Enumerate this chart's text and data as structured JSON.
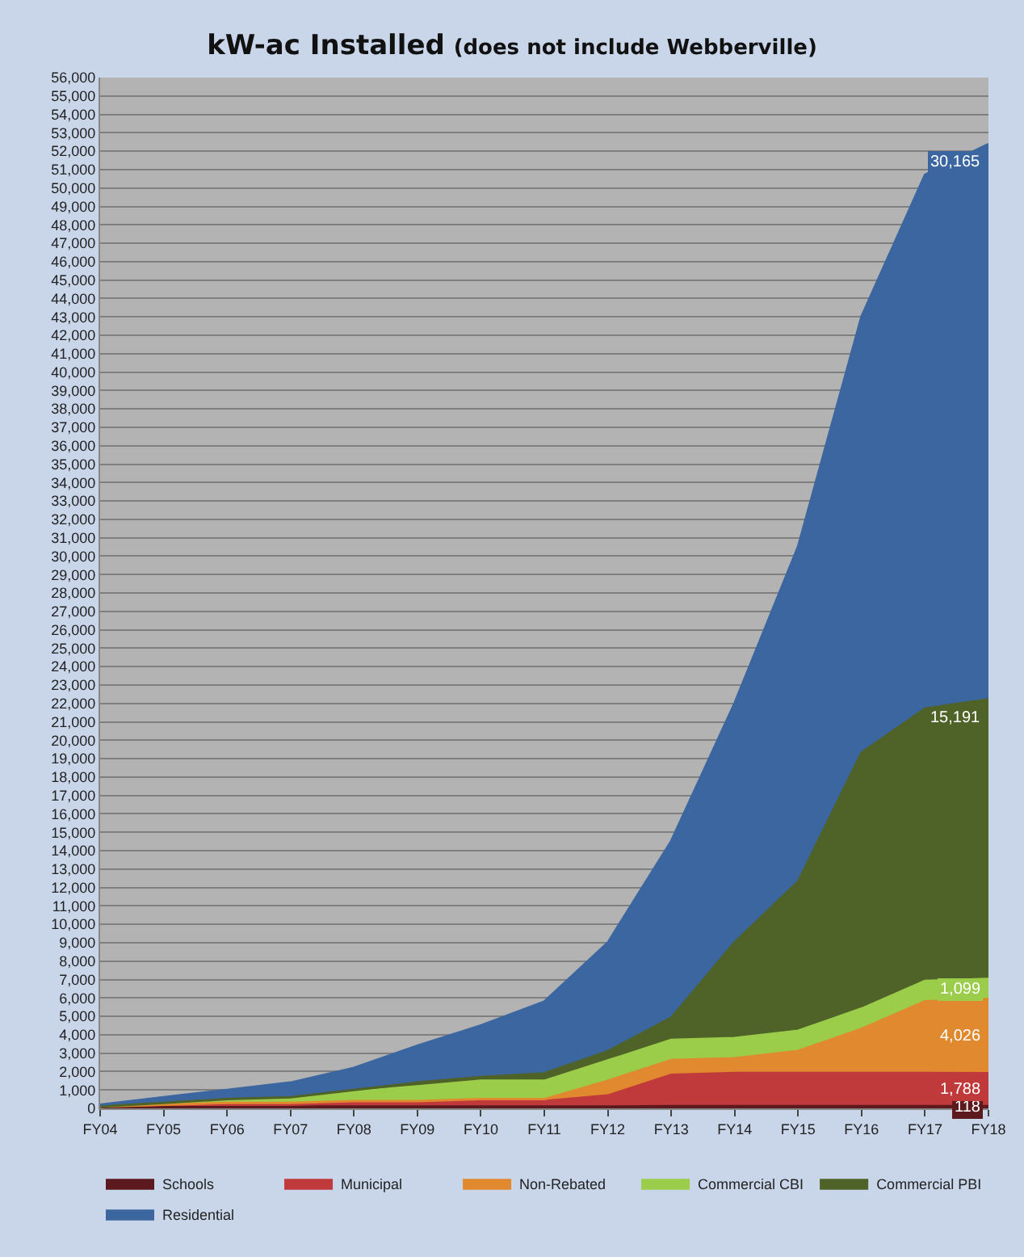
{
  "chart_data": {
    "type": "area",
    "stacked": true,
    "title": "kW-ac Installed",
    "subtitle": "(does not include Webberville)",
    "categories": [
      "FY04",
      "FY05",
      "FY06",
      "FY07",
      "FY08",
      "FY09",
      "FY10",
      "FY11",
      "FY12",
      "FY13",
      "FY14",
      "FY15",
      "FY16",
      "FY17",
      "FY18"
    ],
    "series": [
      {
        "name": "Schools",
        "color": "#5c1a1f",
        "values": [
          100,
          100,
          100,
          100,
          100,
          100,
          100,
          100,
          100,
          118,
          118,
          118,
          118,
          118,
          118
        ],
        "value_labels": [
          null,
          null,
          null,
          null,
          null,
          null,
          null,
          null,
          null,
          null,
          null,
          null,
          null,
          null,
          "118"
        ]
      },
      {
        "name": "Municipal",
        "color": "#c0393b",
        "values": [
          0,
          100,
          100,
          100,
          200,
          200,
          300,
          300,
          600,
          1700,
          1800,
          1800,
          1800,
          1800,
          1788
        ],
        "value_labels": [
          null,
          null,
          null,
          null,
          null,
          null,
          null,
          null,
          null,
          null,
          null,
          null,
          null,
          null,
          "1,788"
        ]
      },
      {
        "name": "Non-Rebated",
        "color": "#e0892f",
        "values": [
          0,
          0,
          100,
          100,
          100,
          100,
          100,
          100,
          800,
          800,
          800,
          1200,
          2400,
          3900,
          4026
        ],
        "value_labels": [
          null,
          null,
          null,
          null,
          null,
          null,
          null,
          null,
          null,
          null,
          null,
          null,
          null,
          null,
          "4,026"
        ]
      },
      {
        "name": "Commercial CBI",
        "color": "#9bcd4b",
        "values": [
          0,
          100,
          200,
          300,
          500,
          800,
          1000,
          1000,
          1100,
          1100,
          1100,
          1100,
          1100,
          1100,
          1099
        ],
        "value_labels": [
          null,
          null,
          null,
          null,
          null,
          null,
          null,
          null,
          null,
          null,
          null,
          null,
          null,
          null,
          "1,099"
        ]
      },
      {
        "name": "Commercial PBI",
        "color": "#4f6228",
        "values": [
          0,
          0,
          0,
          0,
          100,
          200,
          200,
          400,
          500,
          1200,
          5200,
          8100,
          13900,
          14800,
          15191
        ],
        "value_labels": [
          null,
          null,
          null,
          null,
          null,
          null,
          null,
          null,
          null,
          null,
          null,
          null,
          null,
          null,
          "15,191"
        ]
      },
      {
        "name": "Residential",
        "color": "#3b66a0",
        "values": [
          100,
          300,
          500,
          800,
          1200,
          2000,
          2800,
          3900,
          5900,
          9600,
          13000,
          18200,
          23700,
          29000,
          30165
        ],
        "value_labels": [
          null,
          null,
          null,
          null,
          null,
          null,
          null,
          null,
          null,
          null,
          null,
          null,
          null,
          null,
          "30,165"
        ]
      }
    ],
    "ylim": [
      0,
      56000
    ],
    "yticks": [
      0,
      {
        "value": 1000,
        "label": "1,000"
      },
      {
        "value": 2000,
        "label": "2,000"
      },
      {
        "value": 3000,
        "label": "3,000"
      },
      {
        "value": 4000,
        "label": "4,000"
      },
      {
        "value": 5000,
        "label": "5,000"
      },
      {
        "value": 6000,
        "label": "6,000"
      },
      {
        "value": 7000,
        "label": "7,000"
      },
      {
        "value": 8000,
        "label": "8,000"
      },
      {
        "value": 9000,
        "label": "9,000"
      },
      {
        "value": 10000,
        "label": "10,000"
      },
      {
        "value": 11000,
        "label": "11,000"
      },
      {
        "value": 12000,
        "label": "12,000"
      },
      {
        "value": 13000,
        "label": "13,000"
      },
      {
        "value": 14000,
        "label": "14,000"
      },
      {
        "value": 15000,
        "label": "15,000"
      },
      {
        "value": 16000,
        "label": "16,000"
      },
      {
        "value": 17000,
        "label": "17,000"
      },
      {
        "value": 18000,
        "label": "18,000"
      },
      {
        "value": 19000,
        "label": "19,000"
      },
      {
        "value": 20000,
        "label": "20,000"
      },
      {
        "value": 21000,
        "label": "21,000"
      },
      {
        "value": 22000,
        "label": "22,000"
      },
      {
        "value": 23000,
        "label": "23,000"
      },
      {
        "value": 24000,
        "label": "24,000"
      },
      {
        "value": 25000,
        "label": "25,000"
      },
      {
        "value": 26000,
        "label": "26,000"
      },
      {
        "value": 27000,
        "label": "27,000"
      },
      {
        "value": 28000,
        "label": "28,000"
      },
      {
        "value": 29000,
        "label": "29,000"
      },
      {
        "value": 30000,
        "label": "30,000"
      },
      {
        "value": 31000,
        "label": "31,000"
      },
      {
        "value": 32000,
        "label": "32,000"
      },
      {
        "value": 33000,
        "label": "33,000"
      },
      {
        "value": 34000,
        "label": "34,000"
      },
      {
        "value": 35000,
        "label": "35,000"
      },
      {
        "value": 36000,
        "label": "36,000"
      },
      {
        "value": 37000,
        "label": "37,000"
      },
      {
        "value": 38000,
        "label": "38,000"
      },
      {
        "value": 39000,
        "label": "39,000"
      },
      {
        "value": 40000,
        "label": "40,000"
      },
      {
        "value": 41000,
        "label": "41,000"
      },
      {
        "value": 42000,
        "label": "42,000"
      },
      {
        "value": 43000,
        "label": "43,000"
      },
      {
        "value": 44000,
        "label": "44,000"
      },
      {
        "value": 45000,
        "label": "45,000"
      },
      {
        "value": 46000,
        "label": "46,000"
      },
      {
        "value": 47000,
        "label": "47,000"
      },
      {
        "value": 48000,
        "label": "48,000"
      },
      {
        "value": 49000,
        "label": "49,000"
      },
      {
        "value": 50000,
        "label": "50,000"
      },
      {
        "value": 51000,
        "label": "51,000"
      },
      {
        "value": 52000,
        "label": "52,000"
      },
      {
        "value": 53000,
        "label": "53,000"
      },
      {
        "value": 54000,
        "label": "54,000"
      },
      {
        "value": 55000,
        "label": "55,000"
      },
      {
        "value": 56000,
        "label": "56,000"
      }
    ],
    "grid": "y",
    "legend": "bottom"
  }
}
